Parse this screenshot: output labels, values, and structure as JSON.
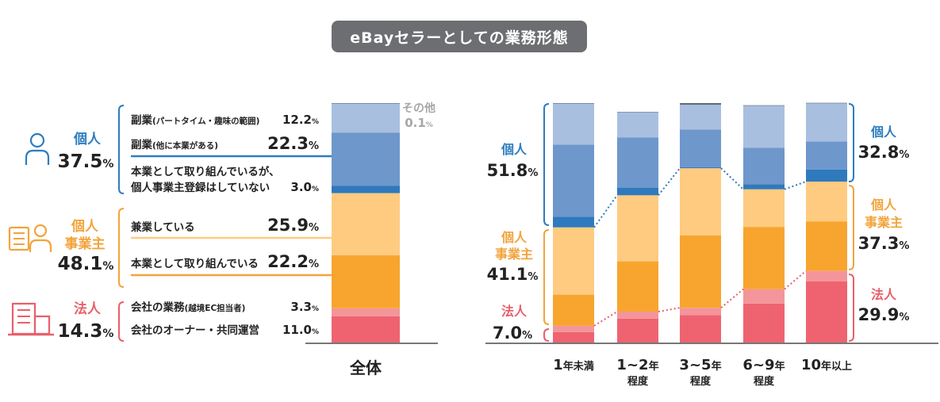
{
  "title": "eBayセラーとしての業務形態",
  "colors": {
    "individual": "#2e7dbf",
    "sole": "#f2a43c",
    "corp": "#e8606a",
    "other": "#9aa0a6"
  },
  "chart_data": [
    {
      "type": "bar",
      "stacked": true,
      "categories": [
        "全体"
      ],
      "series": [
        {
          "name": "会社のオーナー・共同運営",
          "values": [
            11.0
          ],
          "color": "#ef6371"
        },
        {
          "name": "会社の業務(越境EC担当者)",
          "values": [
            3.3
          ],
          "color": "#f3959a"
        },
        {
          "name": "本業として取り組んでいる",
          "values": [
            22.2
          ],
          "color": "#f7a52e"
        },
        {
          "name": "兼業している",
          "values": [
            25.9
          ],
          "color": "#fecb80"
        },
        {
          "name": "本業として取り組んでいるが、個人事業主登録はしていない",
          "values": [
            3.0
          ],
          "color": "#2f79bd"
        },
        {
          "name": "副業(他に本業がある)",
          "values": [
            22.3
          ],
          "color": "#6e97cc"
        },
        {
          "name": "副業(パートタイム・趣味の範囲)",
          "values": [
            12.2
          ],
          "color": "#a9bfe0"
        },
        {
          "name": "その他",
          "values": [
            0.1
          ],
          "color": "#5f6b78"
        }
      ],
      "groups": [
        {
          "name": "個人",
          "value": "37.5",
          "unit": "%",
          "color": "#2e7dbf"
        },
        {
          "name": "個人事業主",
          "value": "48.1",
          "unit": "%",
          "color": "#f2a43c"
        },
        {
          "name": "法人",
          "value": "14.3",
          "unit": "%",
          "color": "#e8606a"
        }
      ],
      "labels": [
        {
          "text": "副業",
          "sub": "(パートタイム・趣味の範囲)",
          "value": "12.2",
          "unit": "%"
        },
        {
          "text": "副業",
          "sub": "(他に本業がある)",
          "value": "22.3",
          "unit": "%"
        },
        {
          "text": "本業として取り組んでいるが、",
          "text2": "個人事業主登録はしていない",
          "value": "3.0",
          "unit": "%"
        },
        {
          "text": "兼業している",
          "value": "25.9",
          "unit": "%"
        },
        {
          "text": "本業として取り組んでいる",
          "value": "22.2",
          "unit": "%"
        },
        {
          "text": "会社の業務",
          "sub": "(越境EC担当者)",
          "value": "3.3",
          "unit": "%"
        },
        {
          "text": "会社のオーナー・共同運営",
          "value": "11.0",
          "unit": "%"
        }
      ],
      "other_label": {
        "name": "その他",
        "value": "0.1",
        "unit": "%"
      },
      "ylim": [
        0,
        100
      ]
    },
    {
      "type": "bar",
      "stacked": true,
      "categories": [
        "1年未満",
        "1~2年 程度",
        "3~5年 程度",
        "6~9年 程度",
        "10年以上"
      ],
      "category_lines": [
        [
          "1年未満",
          ""
        ],
        [
          "1~2年",
          "程度"
        ],
        [
          "3~5年",
          "程度"
        ],
        [
          "6~9年",
          "程度"
        ],
        [
          "10年以上",
          ""
        ]
      ],
      "series": [
        {
          "name": "会社のオーナー・共同運営",
          "values": [
            4.4,
            10.0,
            11.5,
            16.3,
            25.6
          ],
          "color": "#ef6371"
        },
        {
          "name": "会社の業務",
          "values": [
            2.6,
            2.9,
            3.0,
            6.0,
            4.3
          ],
          "color": "#f3959a"
        },
        {
          "name": "本業として取り組んでいる",
          "values": [
            13.0,
            21.0,
            30.2,
            26.0,
            20.7
          ],
          "color": "#f7a52e"
        },
        {
          "name": "兼業している",
          "values": [
            28.1,
            27.6,
            28.1,
            15.7,
            16.6
          ],
          "color": "#fecb80"
        },
        {
          "name": "本業として取り組んでいるが、個人事業主登録はしていない",
          "values": [
            4.4,
            3.2,
            0.4,
            2.1,
            5.0
          ],
          "color": "#2f79bd"
        },
        {
          "name": "副業(他に本業がある)",
          "values": [
            30.2,
            21.0,
            15.8,
            15.2,
            11.8
          ],
          "color": "#6e97cc"
        },
        {
          "name": "副業(パートタイム・趣味の範囲)",
          "values": [
            17.2,
            10.5,
            10.3,
            17.7,
            16.0
          ],
          "color": "#a9bfe0"
        },
        {
          "name": "その他",
          "values": [
            0.1,
            0.1,
            0.7,
            0.1,
            0.1
          ],
          "color": "#5f6b78"
        }
      ],
      "left_groups": [
        {
          "name": "個人",
          "value": "51.8",
          "unit": "%",
          "color": "#2e7dbf"
        },
        {
          "name": "個人事業主",
          "value": "41.1",
          "unit": "%",
          "color": "#f2a43c"
        },
        {
          "name": "法人",
          "value": "7.0",
          "unit": "%",
          "color": "#e8606a"
        }
      ],
      "right_groups": [
        {
          "name": "個人",
          "value": "32.8",
          "unit": "%",
          "color": "#2e7dbf"
        },
        {
          "name": "個人事業主",
          "value": "37.3",
          "unit": "%",
          "color": "#f2a43c"
        },
        {
          "name": "法人",
          "value": "29.9",
          "unit": "%",
          "color": "#e8606a"
        }
      ],
      "ylim": [
        0,
        100
      ]
    }
  ]
}
